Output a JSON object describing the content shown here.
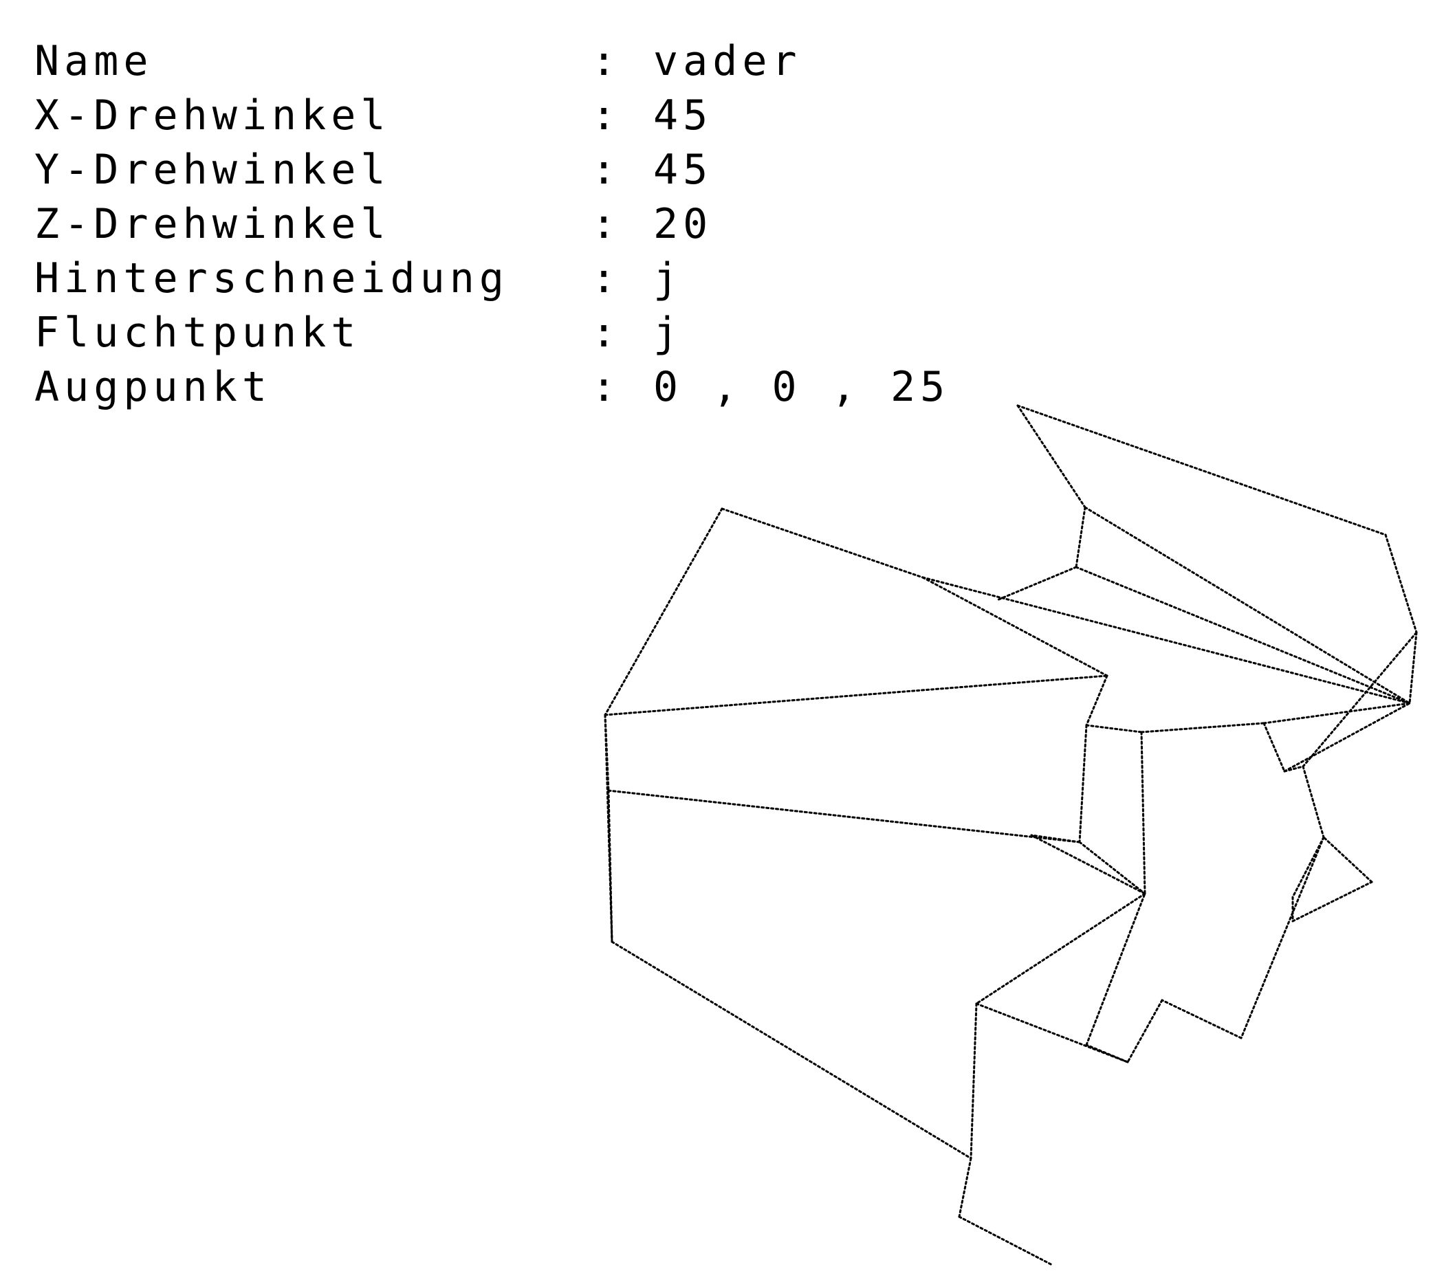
{
  "parameters": [
    {
      "label": "Name",
      "separator": ":",
      "value": "vader"
    },
    {
      "label": "X-Drehwinkel",
      "separator": ":",
      "value": "45"
    },
    {
      "label": "Y-Drehwinkel",
      "separator": ":",
      "value": "45"
    },
    {
      "label": "Z-Drehwinkel",
      "separator": ":",
      "value": "20"
    },
    {
      "label": "Hinterschneidung",
      "separator": ":",
      "value": "j"
    },
    {
      "label": "Fluchtpunkt",
      "separator": ":",
      "value": "j"
    },
    {
      "label": "Augpunkt",
      "separator": ":",
      "value": "0 , 0 , 25"
    }
  ],
  "colors": {
    "background": "#ffffff",
    "foreground": "#000000"
  }
}
